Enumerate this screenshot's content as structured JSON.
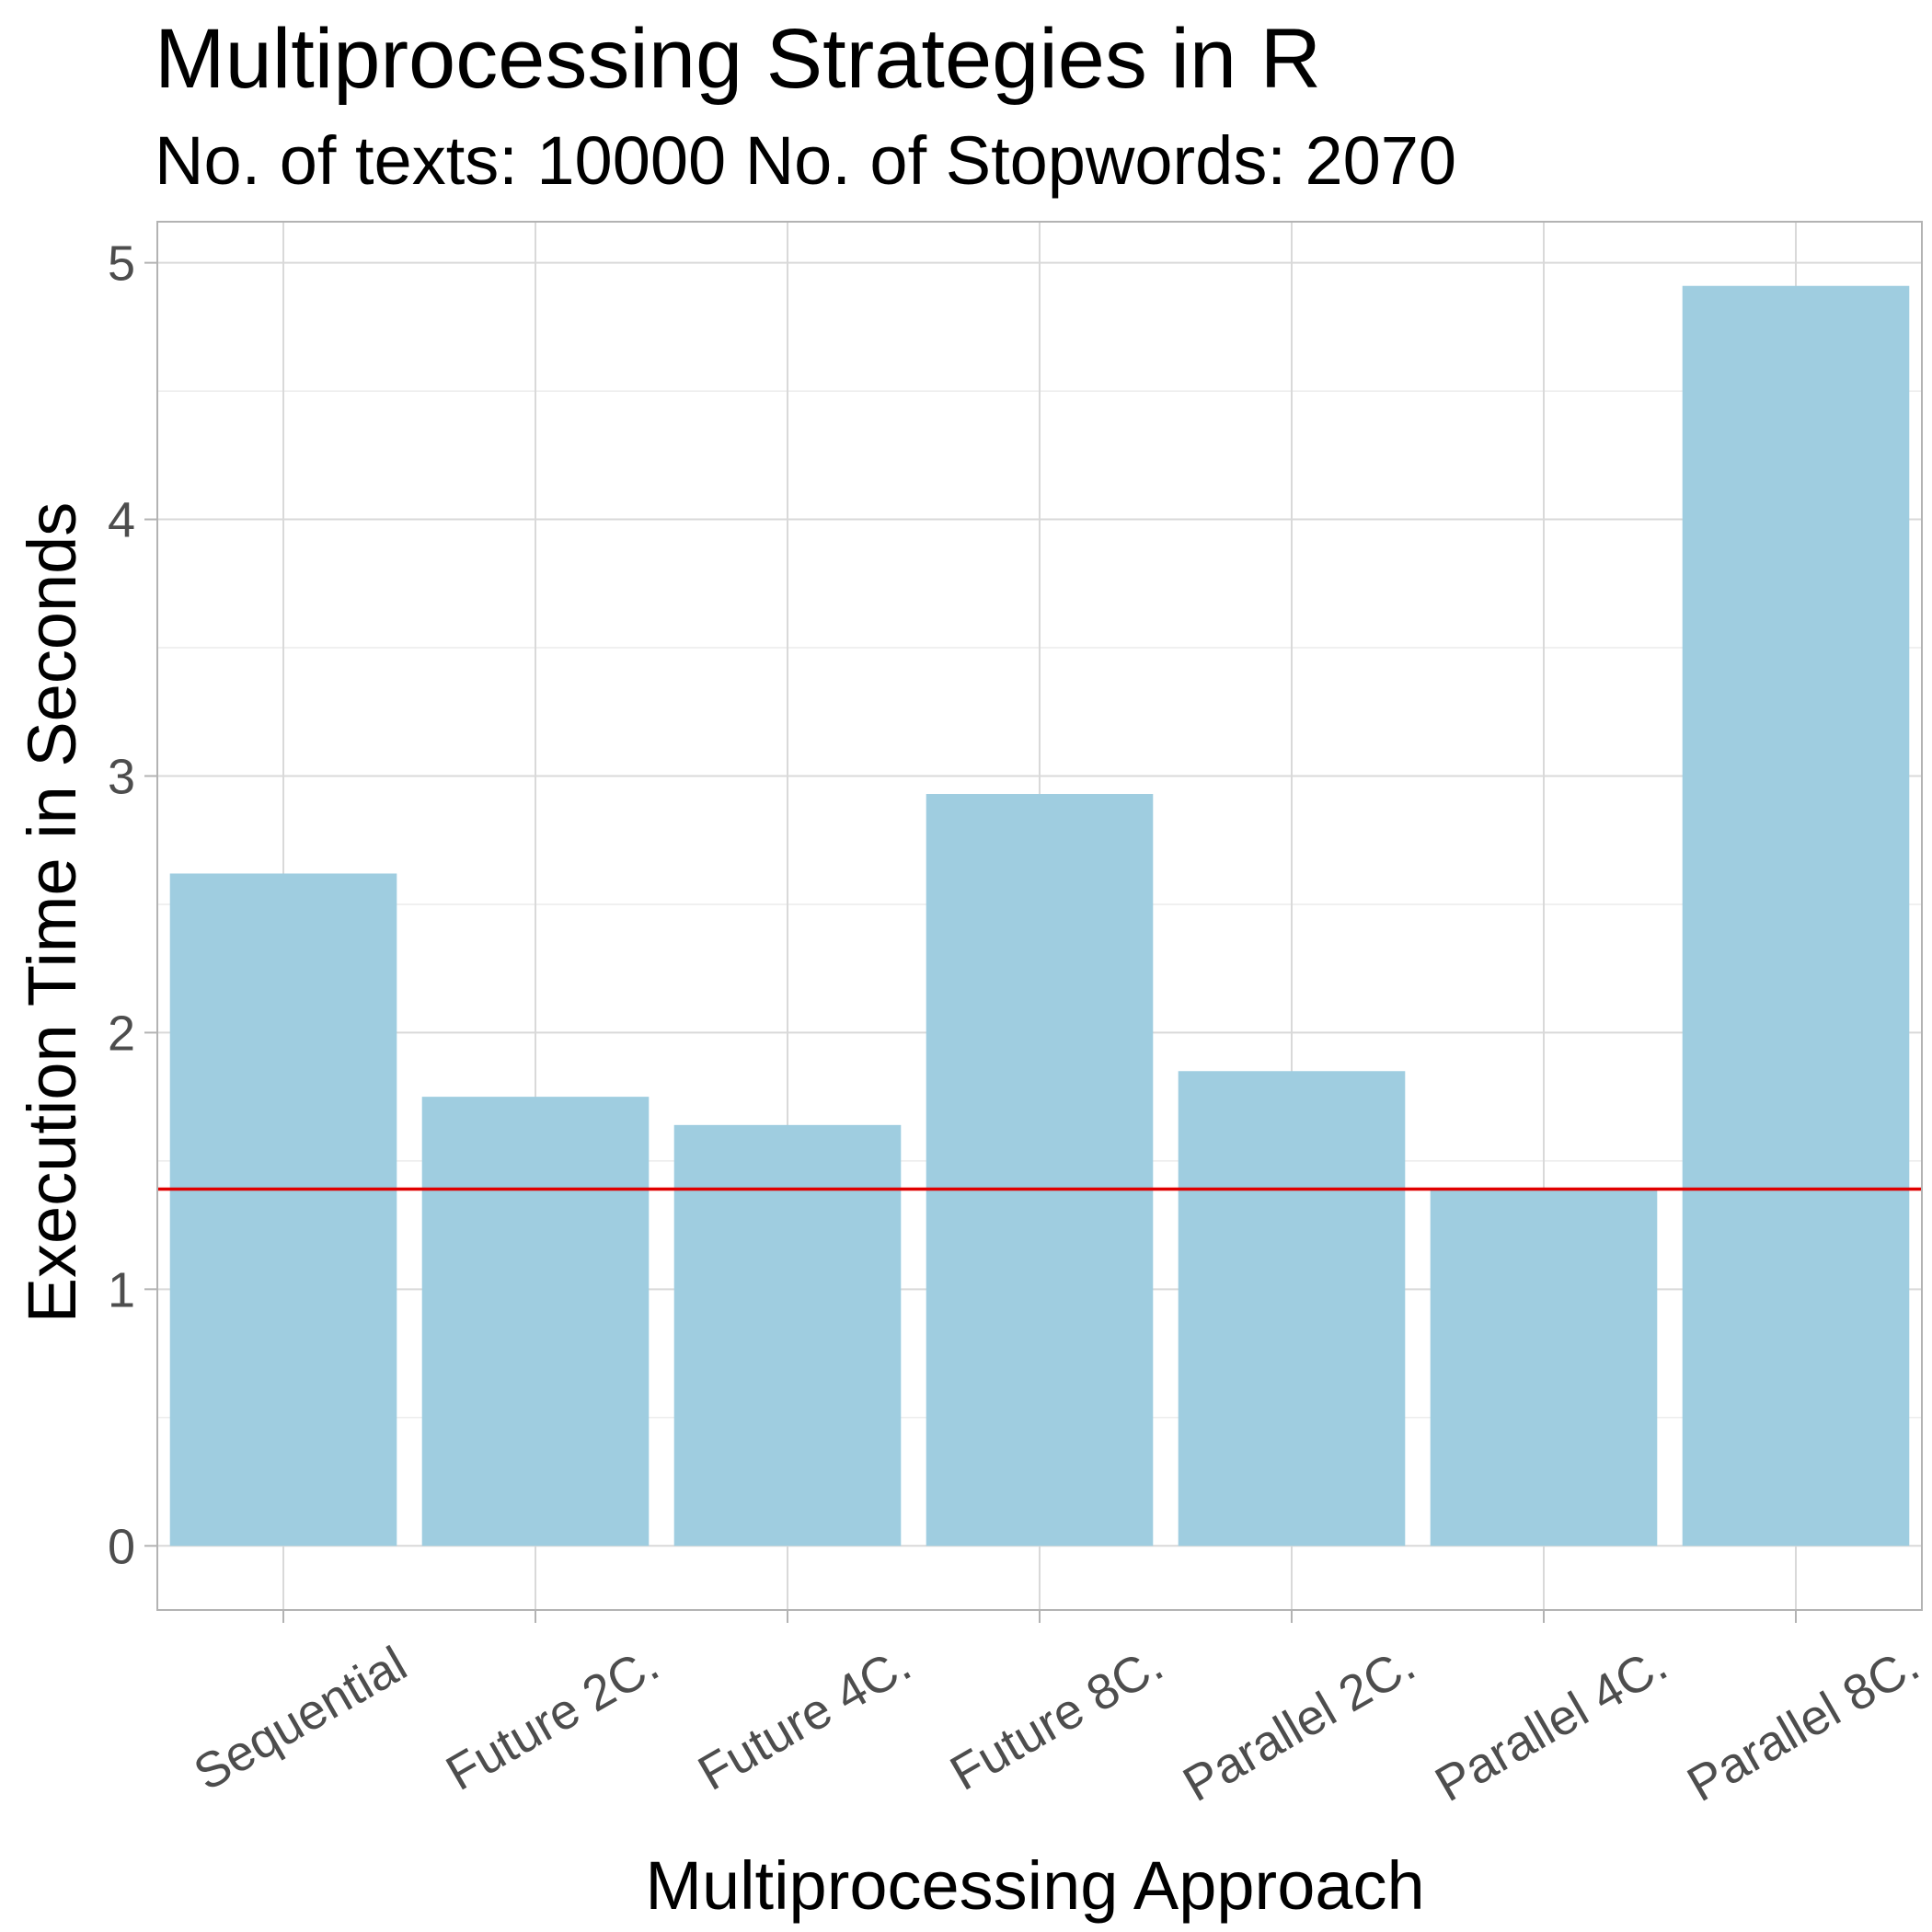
{
  "chart_data": {
    "type": "bar",
    "title": "Multiprocessing Strategies in R",
    "subtitle": "No. of texts: 10000 No. of Stopwords:  2070",
    "xlabel": "Multiprocessing Approach",
    "ylabel": "Execution Time in Seconds",
    "categories": [
      "Sequential",
      "Future 2C.",
      "Future 4C.",
      "Future 8C.",
      "Parallel 2C.",
      "Parallel 4C.",
      "Parallel 8C."
    ],
    "values": [
      2.62,
      1.75,
      1.64,
      2.93,
      1.85,
      1.39,
      4.91
    ],
    "ylim": [
      -0.25,
      5.16
    ],
    "yticks": [
      0,
      1,
      2,
      3,
      4,
      5
    ],
    "grid": true,
    "legend": "none",
    "reference_line": {
      "y": 1.39,
      "color": "#e00000"
    },
    "bar_color": "#9fcde0"
  }
}
